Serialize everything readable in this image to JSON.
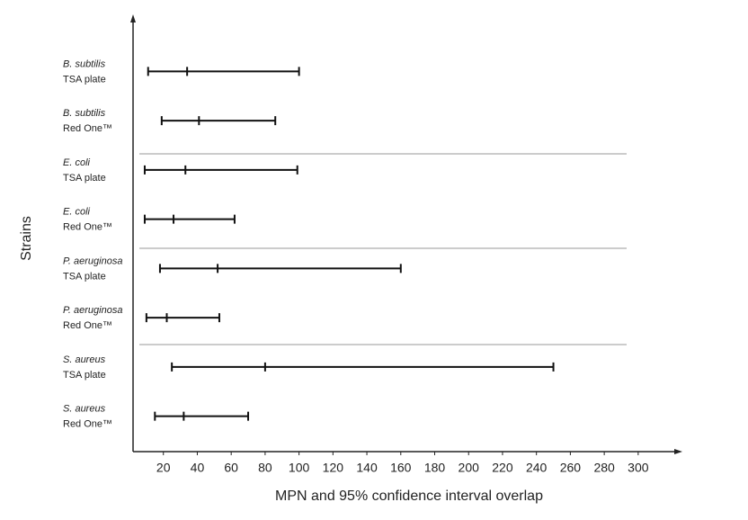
{
  "chart_data": {
    "type": "interval",
    "x_label": "MPN and 95% confidence interval overlap",
    "y_label": "Strains",
    "categories": [
      [
        "B. subtilis",
        "TSA plate"
      ],
      [
        "B. subtilis",
        "Red One™"
      ],
      [
        "E. coli",
        "TSA plate"
      ],
      [
        "E. coli",
        "Red One™"
      ],
      [
        "P. aeruginosa",
        "TSA plate"
      ],
      [
        "P. aeruginosa",
        "Red One™"
      ],
      [
        "S. aureus",
        "TSA plate"
      ],
      [
        "S. aureus",
        "Red One™"
      ]
    ],
    "lower": [
      11,
      19,
      9,
      9,
      18,
      10,
      25,
      15
    ],
    "values": [
      34,
      41,
      33,
      26,
      52,
      22,
      80,
      32
    ],
    "upper": [
      100,
      86,
      99,
      62,
      160,
      53,
      250,
      70
    ],
    "color": "#111111",
    "xlim": [
      0,
      325
    ],
    "xticks": [
      20,
      40,
      60,
      80,
      100,
      120,
      140,
      160,
      180,
      200,
      220,
      240,
      260,
      280,
      300
    ]
  }
}
